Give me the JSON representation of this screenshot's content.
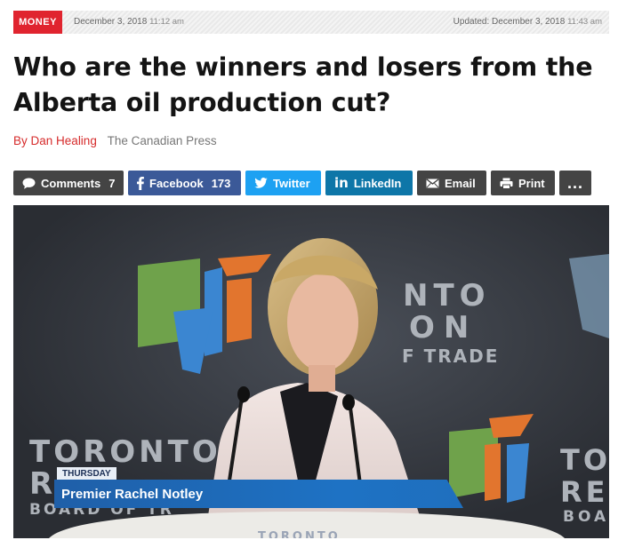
{
  "meta": {
    "category": "MONEY",
    "published_date": "December 3, 2018",
    "published_time": "11:12 am",
    "updated_label": "Updated:",
    "updated_date": "December 3, 2018",
    "updated_time": "11:43 am"
  },
  "headline": "Who are the winners and losers from the Alberta oil production cut?",
  "byline": {
    "prefix": "By",
    "author": "Dan Healing",
    "source": "The Canadian Press"
  },
  "share": {
    "comments_label": "Comments",
    "comments_count": "7",
    "facebook_label": "Facebook",
    "facebook_count": "173",
    "twitter_label": "Twitter",
    "linkedin_label": "LinkedIn",
    "email_label": "Email",
    "print_label": "Print",
    "more_label": "..."
  },
  "hero": {
    "lower_third_tag": "THURSDAY",
    "lower_third_caption": "Premier Rachel Notley",
    "backdrop_left": [
      "TORONTO",
      "R",
      "BOARD OF TR"
    ],
    "backdrop_center": [
      "NTO",
      "ON",
      "F TRADE"
    ],
    "backdrop_right": [
      "TO",
      "RE",
      "BOA"
    ],
    "podium_text": "TORONTO"
  },
  "colors": {
    "accent": "#e0242f",
    "facebook": "#3b5998",
    "twitter": "#1da1f2",
    "linkedin": "#0e76a8",
    "button_dark": "#444444",
    "lower_third": "#1e72c4"
  }
}
